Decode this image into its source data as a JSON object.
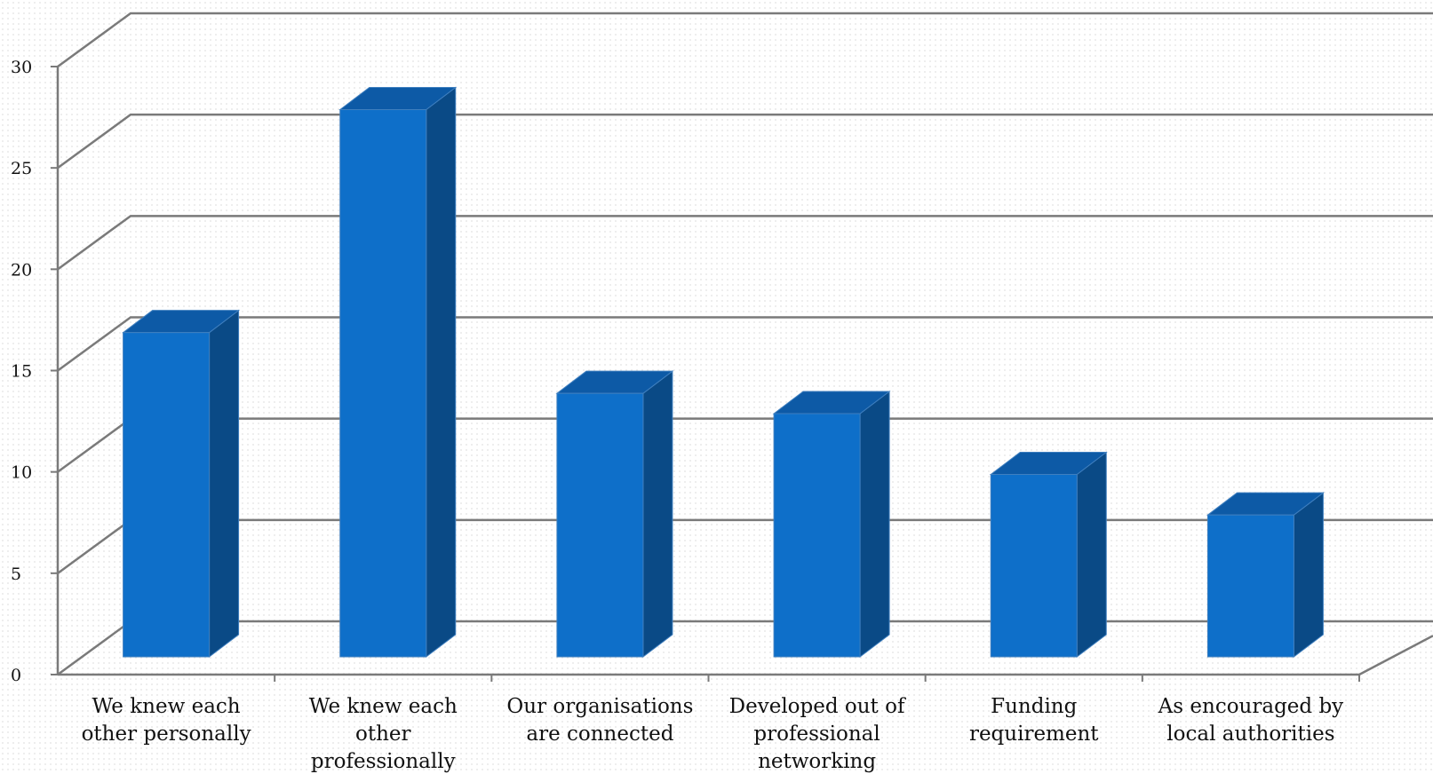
{
  "chart_data": {
    "type": "bar",
    "title": "",
    "xlabel": "",
    "ylabel": "",
    "ylim": [
      0,
      30
    ],
    "yticks": [
      0,
      5,
      10,
      15,
      20,
      25,
      30
    ],
    "categories": [
      [
        "We knew each",
        "other personally"
      ],
      [
        "We knew each",
        "other",
        "professionally"
      ],
      [
        "Our organisations",
        "are connected"
      ],
      [
        "Developed out of",
        "professional",
        "networking"
      ],
      [
        "Funding",
        "requirement"
      ],
      [
        "As encouraged by",
        "local authorities"
      ]
    ],
    "values": [
      16,
      27,
      13,
      12,
      9,
      7
    ],
    "grid": true,
    "style_3d": true,
    "colors": {
      "front": "#0e6fc9",
      "side": "#0a4a86",
      "top": "#0d5aa6",
      "grid": "#7a7a7a"
    }
  }
}
